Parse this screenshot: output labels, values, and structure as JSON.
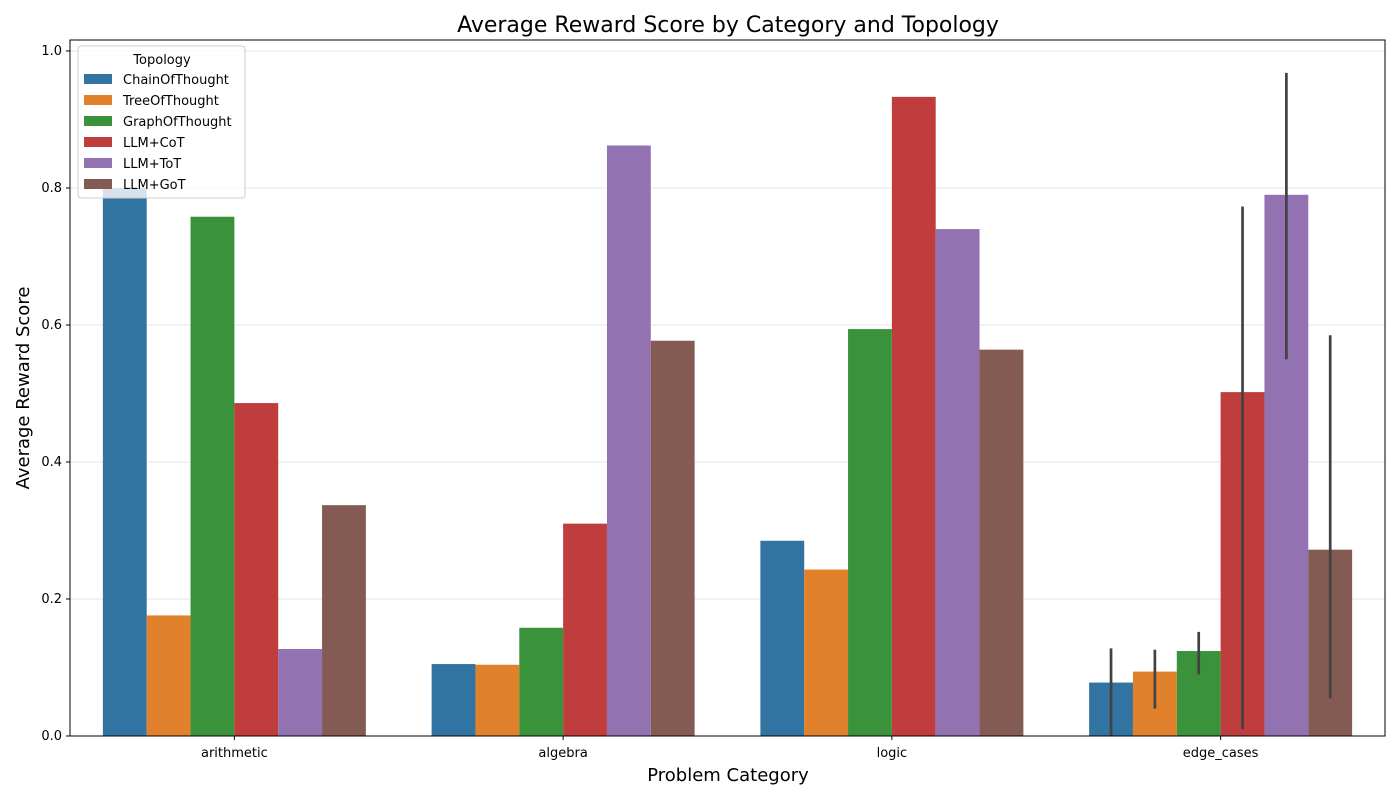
{
  "chart_data": {
    "type": "bar",
    "title": "Average Reward Score by Category and Topology",
    "xlabel": "Problem Category",
    "ylabel": "Average Reward Score",
    "ylim": [
      0,
      1.016
    ],
    "yticks": [
      "0.0",
      "0.2",
      "0.4",
      "0.6",
      "0.8",
      "1.0"
    ],
    "categories": [
      "arithmetic",
      "algebra",
      "logic",
      "edge_cases"
    ],
    "grid": "horizontal",
    "legend": {
      "title": "Topology",
      "placement": "top-left"
    },
    "series": [
      {
        "name": "ChainOfThought",
        "color": "#3274a1",
        "values": [
          0.8,
          0.105,
          0.285,
          0.078
        ],
        "error_bars": [
          null,
          null,
          null,
          [
            0.0,
            0.128
          ]
        ]
      },
      {
        "name": "TreeOfThought",
        "color": "#e1812c",
        "values": [
          0.176,
          0.104,
          0.243,
          0.094
        ],
        "error_bars": [
          null,
          null,
          null,
          [
            0.04,
            0.126
          ]
        ]
      },
      {
        "name": "GraphOfThought",
        "color": "#3a923a",
        "values": [
          0.758,
          0.158,
          0.594,
          0.124
        ],
        "error_bars": [
          null,
          null,
          null,
          [
            0.09,
            0.152
          ]
        ]
      },
      {
        "name": "LLM+CoT",
        "color": "#c03d3e",
        "values": [
          0.486,
          0.31,
          0.933,
          0.502
        ],
        "error_bars": [
          null,
          null,
          null,
          [
            0.01,
            0.773
          ]
        ]
      },
      {
        "name": "LLM+ToT",
        "color": "#9372b2",
        "values": [
          0.127,
          0.862,
          0.74,
          0.79
        ],
        "error_bars": [
          null,
          null,
          null,
          [
            0.55,
            0.968
          ]
        ]
      },
      {
        "name": "LLM+GoT",
        "color": "#845b53",
        "values": [
          0.337,
          0.577,
          0.564,
          0.272
        ],
        "error_bars": [
          null,
          null,
          null,
          [
            0.055,
            0.585
          ]
        ]
      }
    ]
  }
}
